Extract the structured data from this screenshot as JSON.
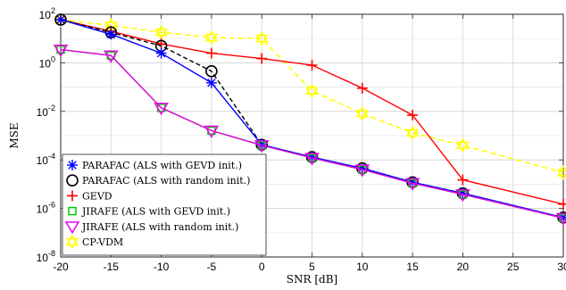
{
  "chart_data": {
    "type": "line",
    "xlabel": "SNR [dB]",
    "ylabel": "MSE",
    "xlim": [
      -20,
      30
    ],
    "ylim_log10": [
      -8,
      2
    ],
    "yscale": "log",
    "grid": true,
    "legend_placement": "bottom-left",
    "x_ticks": [
      -20,
      -15,
      -10,
      -5,
      0,
      5,
      10,
      15,
      20,
      25,
      30
    ],
    "x_tick_labels": [
      "-20",
      "-15",
      "-10",
      "-5",
      "0",
      "5",
      "10",
      "15",
      "20",
      "25",
      "30"
    ],
    "y_tick_exponents": [
      -8,
      -6,
      -4,
      -2,
      0,
      2
    ],
    "series": [
      {
        "name": "CP-VDM",
        "color": "#ffff00",
        "line": "dashed",
        "marker": "hexagram",
        "x": [
          -20,
          -15,
          -10,
          -5,
          0,
          5,
          10,
          15,
          20,
          30
        ],
        "y": [
          60,
          35,
          18,
          11,
          10,
          0.07,
          0.008,
          0.0013,
          0.0004,
          3e-05
        ]
      },
      {
        "name": "GEVD",
        "color": "#ff0000",
        "line": "solid",
        "marker": "plus",
        "x": [
          -20,
          -15,
          -10,
          -5,
          0,
          5,
          10,
          15,
          20,
          30
        ],
        "y": [
          60,
          20,
          6,
          2.5,
          1.5,
          0.8,
          0.09,
          0.007,
          1.5e-05,
          1.5e-06
        ]
      },
      {
        "name": "PARAFAC (ALS with random init.)",
        "color": "#000000",
        "line": "dashed",
        "marker": "circle",
        "x": [
          -20,
          -15,
          -10,
          -5,
          0,
          5,
          10,
          15,
          20,
          30
        ],
        "y": [
          60,
          18,
          5,
          0.45,
          0.00042,
          0.00013,
          4.5e-05,
          1.2e-05,
          4.2e-06,
          4.2e-07
        ]
      },
      {
        "name": "PARAFAC (ALS with GEVD init.)",
        "color": "#0000ff",
        "line": "solid",
        "marker": "asterisk",
        "x": [
          -20,
          -15,
          -10,
          -5,
          0,
          5,
          10,
          15,
          20,
          30
        ],
        "y": [
          60,
          15,
          2.5,
          0.15,
          0.00042,
          0.00013,
          4.5e-05,
          1.2e-05,
          4.2e-06,
          4.2e-07
        ]
      },
      {
        "name": "JIRAFE (ALS with GEVD init.)",
        "color": "#00cc00",
        "line": "solid",
        "marker": "square",
        "x": [
          -20,
          -15,
          -10,
          -5,
          0,
          5,
          10,
          15,
          20,
          30
        ],
        "y": [
          3.5,
          2,
          0.014,
          0.0016,
          0.0004,
          0.00012,
          4e-05,
          1.1e-05,
          3.8e-06,
          4e-07
        ]
      },
      {
        "name": "JIRAFE (ALS with random init.)",
        "color": "#e600e6",
        "line": "solid",
        "marker": "triangle-down",
        "x": [
          -20,
          -15,
          -10,
          -5,
          0,
          5,
          10,
          15,
          20,
          30
        ],
        "y": [
          3.5,
          2,
          0.014,
          0.0016,
          0.0004,
          0.00012,
          4e-05,
          1.1e-05,
          3.8e-06,
          4e-07
        ]
      }
    ],
    "legend_entries": [
      "PARAFAC (ALS with GEVD init.)",
      "PARAFAC (ALS with random init.)",
      "GEVD",
      "JIRAFE (ALS with GEVD init.)",
      "JIRAFE (ALS with random init.)",
      "CP-VDM"
    ]
  }
}
